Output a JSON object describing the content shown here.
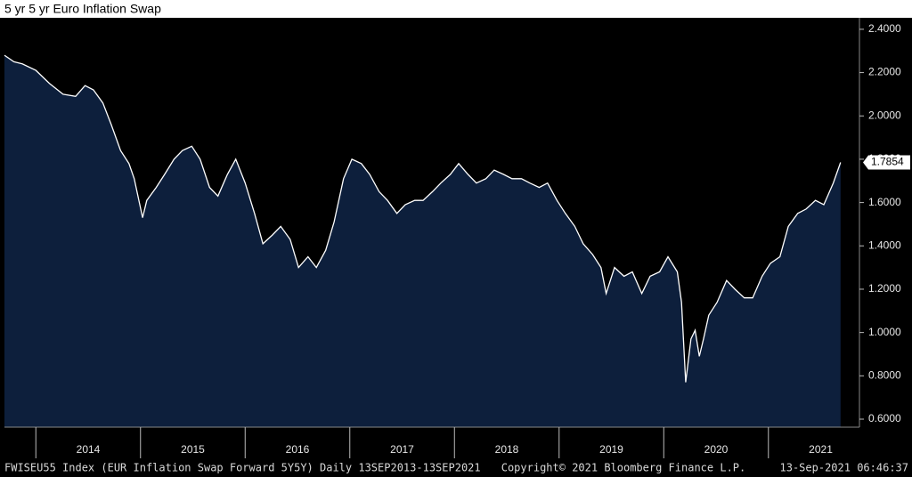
{
  "chart_data": {
    "type": "area",
    "title": "5 yr 5 yr Euro Inflation Swap",
    "series": [
      {
        "name": "FWISEU55 Index",
        "color": "#ffffff",
        "fill": "#0d1f3c",
        "x": [
          2013.7,
          2013.79,
          2013.87,
          2014.0,
          2014.13,
          2014.26,
          2014.38,
          2014.47,
          2014.55,
          2014.64,
          2014.72,
          2014.81,
          2014.89,
          2014.94,
          2015.02,
          2015.06,
          2015.15,
          2015.23,
          2015.32,
          2015.4,
          2015.49,
          2015.57,
          2015.66,
          2015.74,
          2015.83,
          2015.91,
          2016.0,
          2016.09,
          2016.17,
          2016.26,
          2016.34,
          2016.43,
          2016.51,
          2016.6,
          2016.68,
          2016.77,
          2016.85,
          2016.94,
          2017.02,
          2017.11,
          2017.19,
          2017.28,
          2017.36,
          2017.45,
          2017.53,
          2017.62,
          2017.7,
          2017.79,
          2017.87,
          2017.96,
          2018.04,
          2018.13,
          2018.21,
          2018.3,
          2018.38,
          2018.47,
          2018.55,
          2018.64,
          2018.72,
          2018.81,
          2018.89,
          2018.98,
          2019.06,
          2019.15,
          2019.23,
          2019.32,
          2019.4,
          2019.45,
          2019.53,
          2019.62,
          2019.7,
          2019.79,
          2019.87,
          2019.96,
          2020.04,
          2020.13,
          2020.17,
          2020.21,
          2020.26,
          2020.3,
          2020.34,
          2020.38,
          2020.43,
          2020.51,
          2020.6,
          2020.68,
          2020.77,
          2020.85,
          2020.94,
          2021.02,
          2021.11,
          2021.19,
          2021.28,
          2021.36,
          2021.45,
          2021.53,
          2021.62,
          2021.69
        ],
        "values": [
          2.28,
          2.25,
          2.24,
          2.21,
          2.15,
          2.1,
          2.09,
          2.14,
          2.12,
          2.06,
          1.96,
          1.84,
          1.78,
          1.71,
          1.53,
          1.61,
          1.67,
          1.73,
          1.8,
          1.84,
          1.86,
          1.8,
          1.67,
          1.63,
          1.73,
          1.8,
          1.69,
          1.55,
          1.41,
          1.45,
          1.49,
          1.43,
          1.3,
          1.35,
          1.3,
          1.38,
          1.51,
          1.71,
          1.8,
          1.78,
          1.73,
          1.65,
          1.61,
          1.55,
          1.59,
          1.61,
          1.61,
          1.65,
          1.69,
          1.73,
          1.78,
          1.73,
          1.69,
          1.71,
          1.75,
          1.73,
          1.71,
          1.71,
          1.69,
          1.67,
          1.69,
          1.61,
          1.55,
          1.49,
          1.41,
          1.36,
          1.3,
          1.18,
          1.3,
          1.26,
          1.28,
          1.18,
          1.26,
          1.28,
          1.35,
          1.28,
          1.14,
          0.77,
          0.97,
          1.01,
          0.89,
          0.97,
          1.08,
          1.14,
          1.24,
          1.2,
          1.16,
          1.16,
          1.26,
          1.32,
          1.35,
          1.49,
          1.55,
          1.57,
          1.61,
          1.59,
          1.69,
          1.7854
        ]
      }
    ],
    "xlim": [
      2013.7,
      2021.87
    ],
    "xticks": [
      {
        "value": 2014.5,
        "label": "2014"
      },
      {
        "value": 2015.5,
        "label": "2015"
      },
      {
        "value": 2016.5,
        "label": "2016"
      },
      {
        "value": 2017.5,
        "label": "2017"
      },
      {
        "value": 2018.5,
        "label": "2018"
      },
      {
        "value": 2019.5,
        "label": "2019"
      },
      {
        "value": 2020.5,
        "label": "2020"
      },
      {
        "value": 2021.5,
        "label": "2021"
      }
    ],
    "ylim": [
      0.563,
      2.453
    ],
    "yticks": [
      {
        "value": 0.6,
        "label": "0.6000"
      },
      {
        "value": 0.8,
        "label": "0.8000"
      },
      {
        "value": 1.0,
        "label": "1.0000"
      },
      {
        "value": 1.2,
        "label": "1.2000"
      },
      {
        "value": 1.4,
        "label": "1.4000"
      },
      {
        "value": 1.6,
        "label": "1.6000"
      },
      {
        "value": 1.8,
        "label": "1.8000"
      },
      {
        "value": 2.0,
        "label": "2.0000"
      },
      {
        "value": 2.2,
        "label": "2.2000"
      },
      {
        "value": 2.4,
        "label": "2.4000"
      }
    ],
    "grid": false
  },
  "footer": {
    "left": "FWISEU55 Index (EUR Inflation Swap Forward 5Y5Y)  Daily 13SEP2013-13SEP2021",
    "center": "Copyright© 2021 Bloomberg Finance L.P.",
    "right": "13-Sep-2021 06:46:37"
  }
}
